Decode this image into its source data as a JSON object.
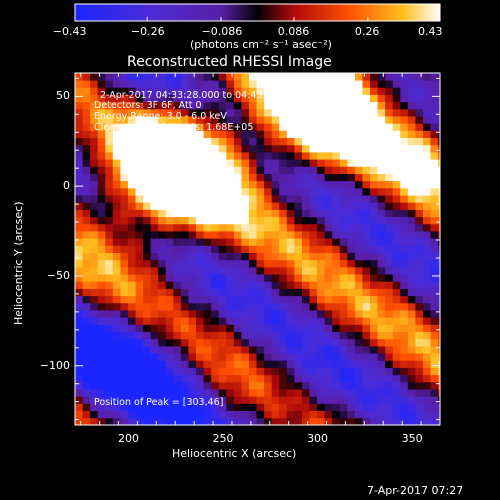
{
  "chart_data": {
    "type": "heatmap",
    "title": "Reconstructed RHESSI Image",
    "xlabel": "Heliocentric X (arcsec)",
    "ylabel": "Heliocentric Y (arcsec)",
    "xlim": [
      172,
      365
    ],
    "ylim": [
      -133,
      63
    ],
    "x_ticks": [
      200,
      250,
      300,
      350
    ],
    "y_ticks": [
      50,
      0,
      -50,
      -100
    ],
    "y_tick_labels": [
      "50",
      "0",
      "−50",
      "−100"
    ],
    "colorbar": {
      "range": [
        -0.43,
        0.43
      ],
      "ticks": [
        -0.43,
        -0.26,
        -0.086,
        0.086,
        0.26,
        0.43
      ],
      "tick_labels": [
        "−0.43",
        "−0.26",
        "−0.086",
        "0.086",
        "0.26",
        "0.43"
      ],
      "units_label": "(photons cm⁻² s⁻¹ asec⁻²)"
    },
    "annotations": {
      "time_range": "2-Apr-2017 04:33:28.000 to 04:43:28.000",
      "detectors": "Detectors: 3F 6F, Att 0",
      "energy_range": "Energy Range: 3.0 - 6.0 keV",
      "clean": "Clean",
      "total_counts": "Total counts: 1.68E+05",
      "peak_position": "Position of Peak = [303,46]"
    },
    "peak": [
      303,
      46
    ]
  },
  "footer": {
    "timestamp": "7-Apr-2017 07:27"
  }
}
